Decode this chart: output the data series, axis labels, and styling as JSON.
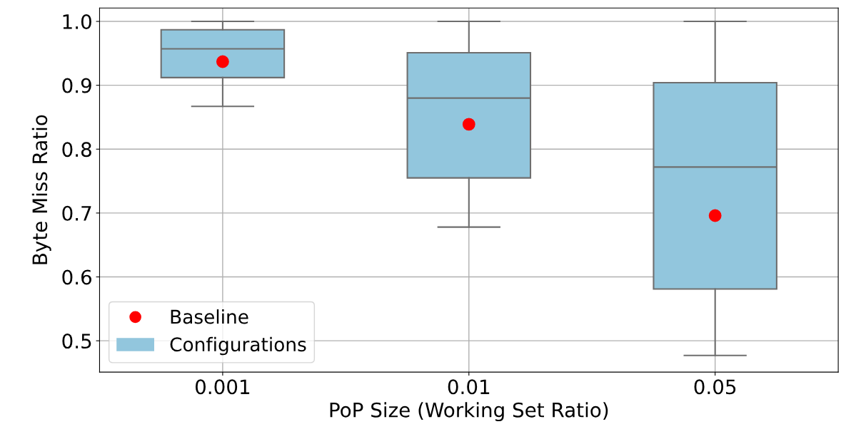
{
  "chart_data": {
    "type": "box",
    "xlabel": "PoP Size (Working Set Ratio)",
    "ylabel": "Byte Miss Ratio",
    "categories": [
      "0.001",
      "0.01",
      "0.05"
    ],
    "series": [
      {
        "name": "Baseline",
        "type": "scatter",
        "color": "#ff0000",
        "x": [
          "0.001",
          "0.01",
          "0.05"
        ],
        "values": [
          0.937,
          0.839,
          0.696
        ],
        "marker": "circle"
      },
      {
        "name": "Configurations",
        "color": "#92c6dd",
        "boxes": [
          {
            "low": 0.867,
            "q1": 0.912,
            "median": 0.957,
            "q3": 0.987,
            "high": 1.0
          },
          {
            "low": 0.678,
            "q1": 0.755,
            "median": 0.88,
            "q3": 0.951,
            "high": 1.0
          },
          {
            "low": 0.477,
            "q1": 0.581,
            "median": 0.772,
            "q3": 0.904,
            "high": 1.0
          }
        ]
      }
    ],
    "ylim": [
      0.451,
      1.021
    ],
    "yticks": [
      0.5,
      0.6,
      0.7,
      0.8,
      0.9,
      {
        "value": 1,
        "label": "1.0"
      }
    ],
    "grid": true,
    "legend": "bottom left"
  }
}
